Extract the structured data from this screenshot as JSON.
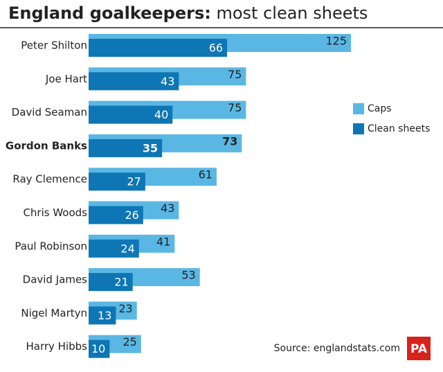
{
  "chart_data": {
    "type": "bar",
    "title": "England goalkeepers:",
    "subtitle": "most clean sheets",
    "categories": [
      "Peter Shilton",
      "Joe Hart",
      "David Seaman",
      "Gordon Banks",
      "Ray Clemence",
      "Chris Woods",
      "Paul Robinson",
      "David James",
      "Nigel Martyn",
      "Harry Hibbs"
    ],
    "highlight": "Gordon Banks",
    "series": [
      {
        "name": "Caps",
        "color": "#5ab7e4",
        "values": [
          125,
          75,
          75,
          73,
          61,
          43,
          41,
          53,
          23,
          25
        ]
      },
      {
        "name": "Clean sheets",
        "color": "#0e76b4",
        "values": [
          66,
          43,
          40,
          35,
          27,
          26,
          24,
          21,
          13,
          10
        ]
      }
    ],
    "source": "Source: englandstats.com",
    "logo": "PA"
  }
}
